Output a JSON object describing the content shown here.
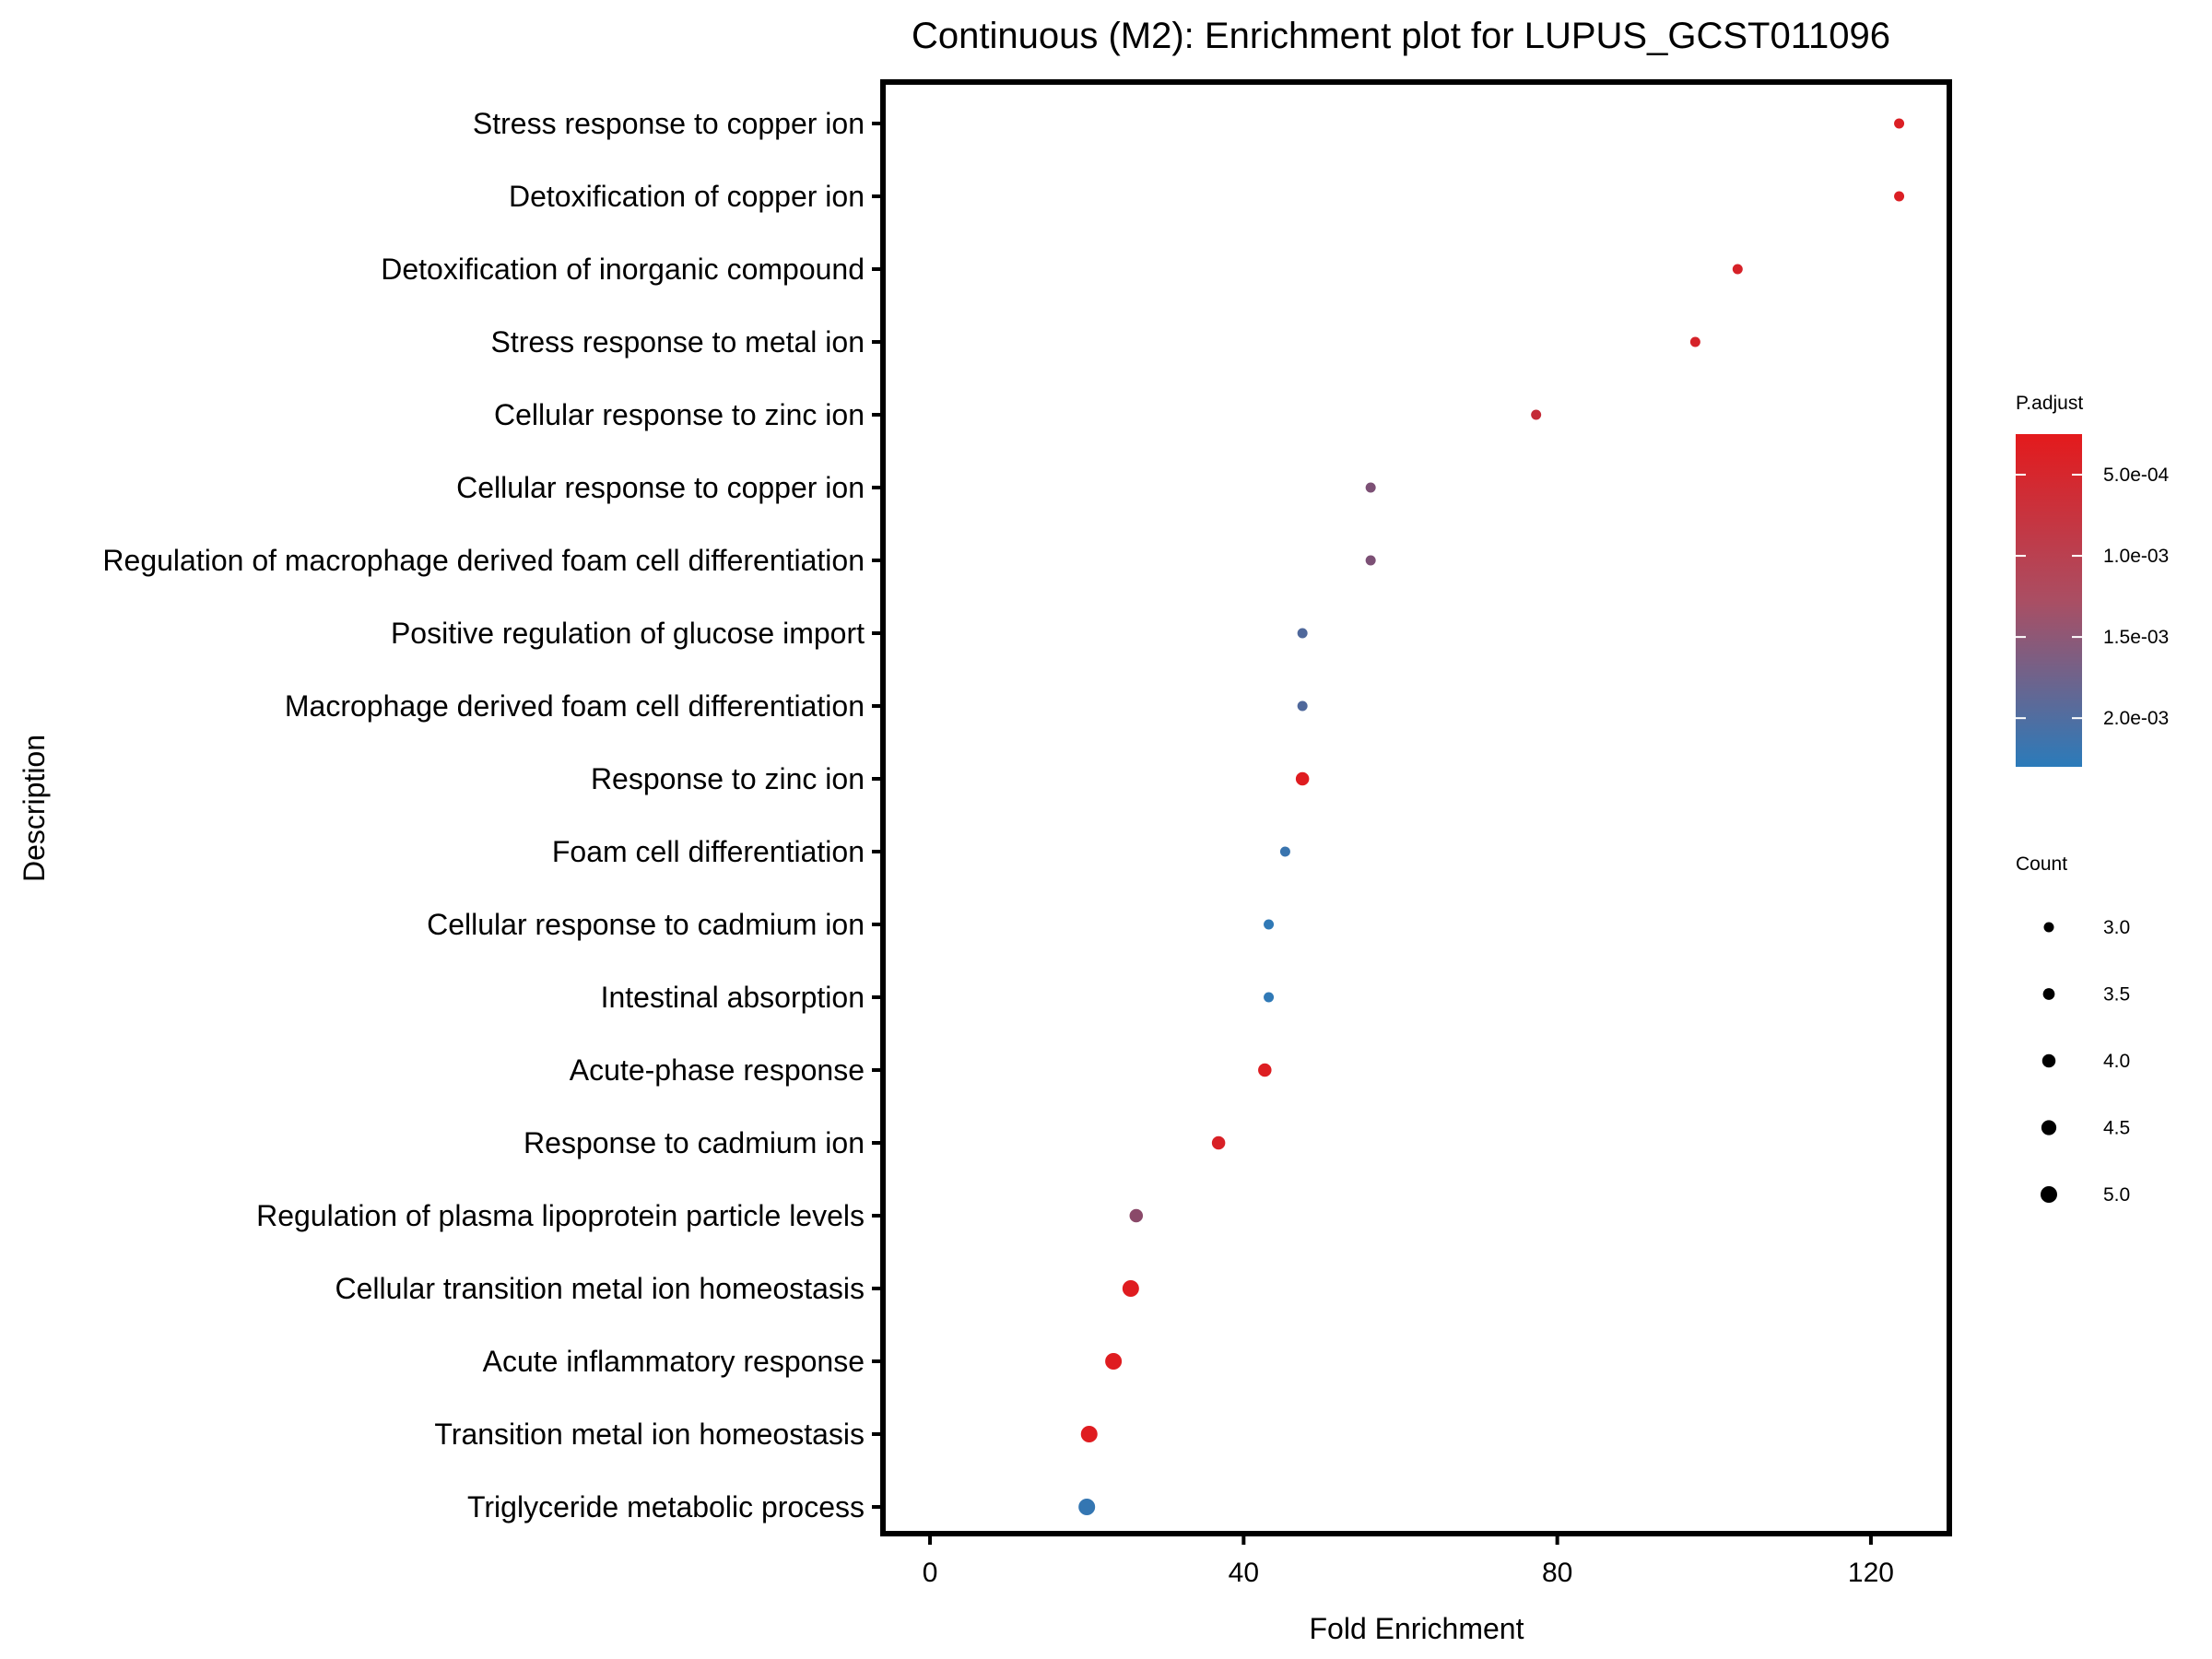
{
  "chart_data": {
    "type": "scatter",
    "title": "Continuous (M2): Enrichment plot for LUPUS_GCST011096",
    "xlabel": "Fold Enrichment",
    "ylabel": "Description",
    "xlim": [
      -6,
      130
    ],
    "xticks": [
      0,
      40,
      80,
      120
    ],
    "xtick_labels": [
      "0",
      "40",
      "80",
      "120"
    ],
    "grid": false,
    "colors": {
      "low_p": "#e41a1c",
      "high_p": "#2b7bba"
    },
    "categories": [
      "Stress response to copper ion",
      "Detoxification of copper ion",
      "Detoxification of inorganic compound",
      "Stress response to metal ion",
      "Cellular response to zinc ion",
      "Cellular response to copper ion",
      "Regulation of macrophage derived foam cell differentiation",
      "Positive regulation of glucose import",
      "Macrophage derived foam cell differentiation",
      "Response to zinc ion",
      "Foam cell differentiation",
      "Cellular response to cadmium ion",
      "Intestinal absorption",
      "Acute-phase response",
      "Response to cadmium ion",
      "Regulation of plasma lipoprotein particle levels",
      "Cellular transition metal ion homeostasis",
      "Acute inflammatory response",
      "Transition metal ion homeostasis",
      "Triglyceride metabolic process"
    ],
    "points": [
      {
        "fold_enrichment": 123.6,
        "p_adjust": 0.00035,
        "count": 3
      },
      {
        "fold_enrichment": 123.6,
        "p_adjust": 0.00035,
        "count": 3
      },
      {
        "fold_enrichment": 103.0,
        "p_adjust": 0.0004,
        "count": 3
      },
      {
        "fold_enrichment": 97.6,
        "p_adjust": 0.00042,
        "count": 3
      },
      {
        "fold_enrichment": 77.3,
        "p_adjust": 0.0006,
        "count": 3
      },
      {
        "fold_enrichment": 56.2,
        "p_adjust": 0.0014,
        "count": 3
      },
      {
        "fold_enrichment": 56.2,
        "p_adjust": 0.0014,
        "count": 3
      },
      {
        "fold_enrichment": 47.5,
        "p_adjust": 0.0019,
        "count": 3
      },
      {
        "fold_enrichment": 47.5,
        "p_adjust": 0.0019,
        "count": 3
      },
      {
        "fold_enrichment": 47.5,
        "p_adjust": 0.0003,
        "count": 4
      },
      {
        "fold_enrichment": 45.3,
        "p_adjust": 0.00215,
        "count": 3
      },
      {
        "fold_enrichment": 43.2,
        "p_adjust": 0.00225,
        "count": 3
      },
      {
        "fold_enrichment": 43.2,
        "p_adjust": 0.00225,
        "count": 3
      },
      {
        "fold_enrichment": 42.7,
        "p_adjust": 0.00033,
        "count": 4
      },
      {
        "fold_enrichment": 36.8,
        "p_adjust": 0.00038,
        "count": 4
      },
      {
        "fold_enrichment": 26.3,
        "p_adjust": 0.00125,
        "count": 4
      },
      {
        "fold_enrichment": 25.6,
        "p_adjust": 0.0003,
        "count": 5
      },
      {
        "fold_enrichment": 23.4,
        "p_adjust": 0.0003,
        "count": 5
      },
      {
        "fold_enrichment": 20.3,
        "p_adjust": 0.0003,
        "count": 5
      },
      {
        "fold_enrichment": 20.0,
        "p_adjust": 0.0022,
        "count": 5
      }
    ],
    "legend": {
      "position": "right",
      "color_title": "P.adjust",
      "color_ticks": [
        0.0005,
        0.001,
        0.0015,
        0.002
      ],
      "color_tick_labels": [
        "5.0e-04",
        "1.0e-03",
        "1.5e-03",
        "2.0e-03"
      ],
      "color_range": [
        0.00025,
        0.0023
      ],
      "size_title": "Count",
      "size_values": [
        3.0,
        3.5,
        4.0,
        4.5,
        5.0
      ],
      "size_labels": [
        "3.0",
        "3.5",
        "4.0",
        "4.5",
        "5.0"
      ],
      "count_range": [
        3,
        5
      ]
    }
  }
}
